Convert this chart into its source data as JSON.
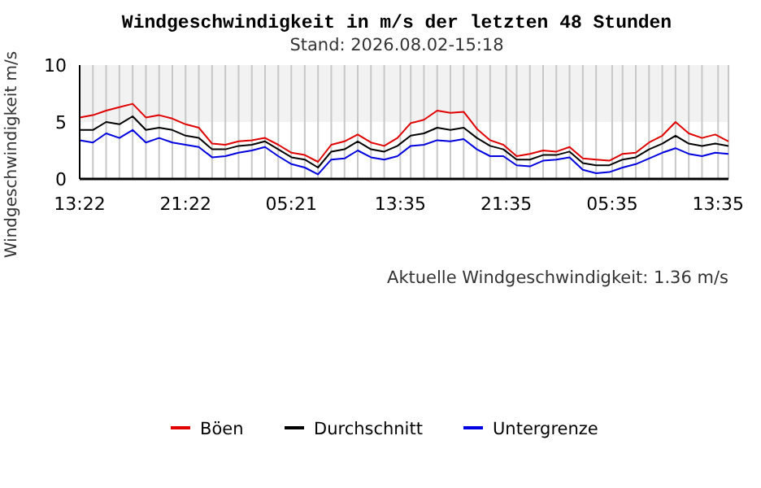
{
  "chart_data": {
    "type": "line",
    "title": "Windgeschwindigkeit in m/s der letzten 48 Stunden",
    "subtitle": "Stand: 2026.08.02-15:18",
    "ylabel": "Windgeschwindigkeit m/s",
    "annotations": [
      "Aktuelle Windgeschwindigkeit: 1.36 m/s"
    ],
    "x": [
      "2026-07-31T13:22",
      "2026-07-31T14:22",
      "2026-07-31T15:22",
      "2026-07-31T16:22",
      "2026-07-31T17:22",
      "2026-07-31T18:22",
      "2026-07-31T19:22",
      "2026-07-31T20:22",
      "2026-07-31T21:22",
      "2026-07-31T22:22",
      "2026-07-31T23:22",
      "2026-08-01T00:22",
      "2026-08-01T01:22",
      "2026-08-01T02:22",
      "2026-08-01T03:22",
      "2026-08-01T04:22",
      "2026-08-01T05:22",
      "2026-08-01T06:22",
      "2026-08-01T07:22",
      "2026-08-01T08:22",
      "2026-08-01T09:22",
      "2026-08-01T10:22",
      "2026-08-01T11:22",
      "2026-08-01T12:22",
      "2026-08-01T13:22",
      "2026-08-01T14:22",
      "2026-08-01T15:22",
      "2026-08-01T16:22",
      "2026-08-01T17:22",
      "2026-08-01T18:22",
      "2026-08-01T19:22",
      "2026-08-01T20:22",
      "2026-08-01T21:22",
      "2026-08-01T22:22",
      "2026-08-01T23:22",
      "2026-08-02T00:22",
      "2026-08-02T01:22",
      "2026-08-02T02:22",
      "2026-08-02T03:22",
      "2026-08-02T04:22",
      "2026-08-02T05:22",
      "2026-08-02T06:22",
      "2026-08-02T07:22",
      "2026-08-02T08:22",
      "2026-08-02T09:22",
      "2026-08-02T10:22",
      "2026-08-02T11:22",
      "2026-08-02T12:22",
      "2026-08-02T13:22",
      "2026-08-02T14:22"
    ],
    "series": [
      {
        "name": "Böen",
        "color": "#e00000",
        "values": [
          5.4,
          5.6,
          6.0,
          6.3,
          6.6,
          5.4,
          5.6,
          5.3,
          4.8,
          4.5,
          3.1,
          3.0,
          3.3,
          3.4,
          3.6,
          3.0,
          2.3,
          2.1,
          1.5,
          3.0,
          3.3,
          3.9,
          3.2,
          2.9,
          3.6,
          4.9,
          5.2,
          6.0,
          5.8,
          5.9,
          4.4,
          3.4,
          3.0,
          2.0,
          2.2,
          2.5,
          2.4,
          2.8,
          1.8,
          1.7,
          1.6,
          2.2,
          2.3,
          3.2,
          3.8,
          5.0,
          4.0,
          3.6,
          3.9,
          3.3
        ]
      },
      {
        "name": "Durchschnitt",
        "color": "#000000",
        "values": [
          4.3,
          4.3,
          5.0,
          4.8,
          5.5,
          4.3,
          4.5,
          4.3,
          3.8,
          3.6,
          2.6,
          2.6,
          2.9,
          3.0,
          3.3,
          2.6,
          1.9,
          1.7,
          1.0,
          2.4,
          2.6,
          3.3,
          2.6,
          2.4,
          2.9,
          3.8,
          4.0,
          4.5,
          4.3,
          4.5,
          3.6,
          2.9,
          2.6,
          1.7,
          1.7,
          2.1,
          2.1,
          2.4,
          1.4,
          1.2,
          1.2,
          1.7,
          1.9,
          2.6,
          3.1,
          3.8,
          3.1,
          2.9,
          3.1,
          2.9
        ]
      },
      {
        "name": "Untergrenze",
        "color": "#0000e0",
        "values": [
          3.4,
          3.2,
          4.0,
          3.6,
          4.3,
          3.2,
          3.6,
          3.2,
          3.0,
          2.8,
          1.9,
          2.0,
          2.3,
          2.5,
          2.8,
          2.0,
          1.3,
          1.0,
          0.4,
          1.7,
          1.8,
          2.5,
          1.9,
          1.7,
          2.0,
          2.9,
          3.0,
          3.4,
          3.3,
          3.5,
          2.6,
          2.0,
          2.0,
          1.2,
          1.1,
          1.6,
          1.7,
          1.9,
          0.8,
          0.5,
          0.6,
          1.0,
          1.3,
          1.8,
          2.3,
          2.7,
          2.2,
          2.0,
          2.3,
          2.2
        ]
      }
    ],
    "xlim": [
      "2026-07-31T13:22",
      "2026-08-02T14:22"
    ],
    "xticks": [
      {
        "value": "2026-07-31T13:22",
        "label": "13:22"
      },
      {
        "value": "2026-07-31T21:22",
        "label": "21:22"
      },
      {
        "value": "2026-08-01T05:21",
        "label": "05:21"
      },
      {
        "value": "2026-08-01T13:35",
        "label": "13:35"
      },
      {
        "value": "2026-08-01T21:35",
        "label": "21:35"
      },
      {
        "value": "2026-08-02T05:35",
        "label": "05:35"
      },
      {
        "value": "2026-08-02T13:35",
        "label": "13:35"
      },
      {
        "value": "2026-07-31T14:22",
        "label": null
      },
      {
        "value": "2026-07-31T15:22",
        "label": null
      },
      {
        "value": "2026-07-31T16:22",
        "label": null
      },
      {
        "value": "2026-07-31T17:22",
        "label": null
      },
      {
        "value": "2026-07-31T18:22",
        "label": null
      },
      {
        "value": "2026-07-31T19:22",
        "label": null
      },
      {
        "value": "2026-07-31T20:22",
        "label": null
      },
      {
        "value": "2026-07-31T22:22",
        "label": null
      },
      {
        "value": "2026-07-31T23:22",
        "label": null
      },
      {
        "value": "2026-08-01T00:22",
        "label": null
      },
      {
        "value": "2026-08-01T01:22",
        "label": null
      },
      {
        "value": "2026-08-01T02:22",
        "label": null
      },
      {
        "value": "2026-08-01T03:22",
        "label": null
      },
      {
        "value": "2026-08-01T04:22",
        "label": null
      },
      {
        "value": "2026-08-01T06:22",
        "label": null
      },
      {
        "value": "2026-08-01T07:22",
        "label": null
      },
      {
        "value": "2026-08-01T08:22",
        "label": null
      },
      {
        "value": "2026-08-01T09:22",
        "label": null
      },
      {
        "value": "2026-08-01T10:22",
        "label": null
      },
      {
        "value": "2026-08-01T11:22",
        "label": null
      },
      {
        "value": "2026-08-01T12:22",
        "label": null
      },
      {
        "value": "2026-08-01T14:22",
        "label": null
      },
      {
        "value": "2026-08-01T15:22",
        "label": null
      },
      {
        "value": "2026-08-01T16:22",
        "label": null
      },
      {
        "value": "2026-08-01T17:22",
        "label": null
      },
      {
        "value": "2026-08-01T18:22",
        "label": null
      },
      {
        "value": "2026-08-01T19:22",
        "label": null
      },
      {
        "value": "2026-08-01T20:22",
        "label": null
      },
      {
        "value": "2026-08-01T22:22",
        "label": null
      },
      {
        "value": "2026-08-01T23:22",
        "label": null
      },
      {
        "value": "2026-08-02T00:22",
        "label": null
      },
      {
        "value": "2026-08-02T01:22",
        "label": null
      },
      {
        "value": "2026-08-02T02:22",
        "label": null
      },
      {
        "value": "2026-08-02T03:22",
        "label": null
      },
      {
        "value": "2026-08-02T04:22",
        "label": null
      },
      {
        "value": "2026-08-02T06:22",
        "label": null
      },
      {
        "value": "2026-08-02T07:22",
        "label": null
      },
      {
        "value": "2026-08-02T08:22",
        "label": null
      },
      {
        "value": "2026-08-02T09:22",
        "label": null
      },
      {
        "value": "2026-08-02T10:22",
        "label": null
      },
      {
        "value": "2026-08-02T11:22",
        "label": null
      },
      {
        "value": "2026-08-02T12:22",
        "label": null
      },
      {
        "value": "2026-08-02T14:22",
        "label": null
      }
    ],
    "ylim": [
      0,
      10
    ],
    "yticks": [
      0,
      5,
      10
    ],
    "bands": [
      {
        "axis": "y",
        "from": 5,
        "to": 10,
        "color": "#f2f2f2"
      }
    ],
    "grid": "x",
    "legend": "bottom",
    "marker": "none",
    "line_style": "solid"
  }
}
